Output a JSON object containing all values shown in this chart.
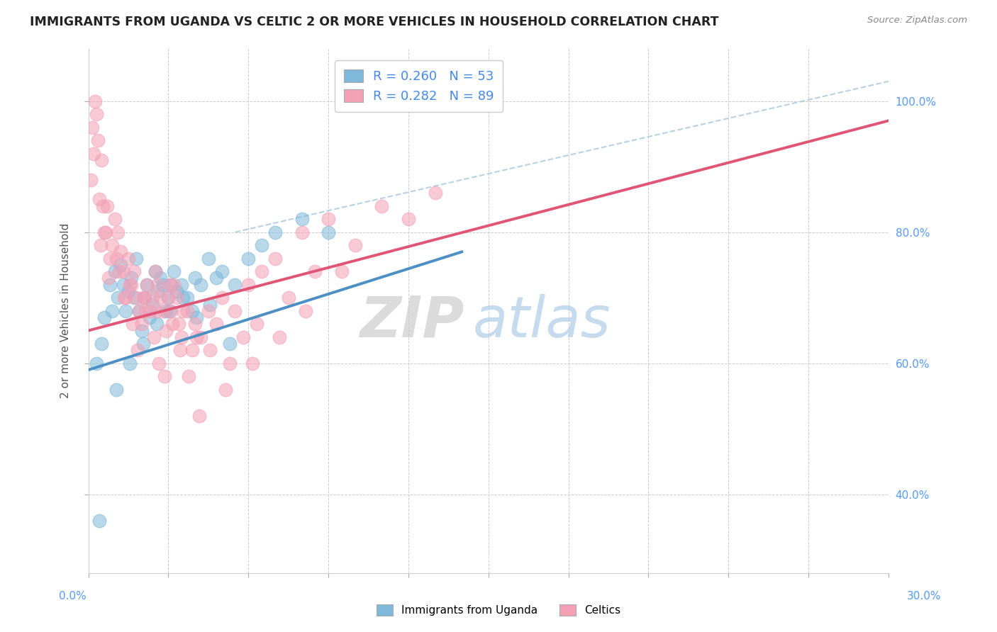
{
  "title": "IMMIGRANTS FROM UGANDA VS CELTIC 2 OR MORE VEHICLES IN HOUSEHOLD CORRELATION CHART",
  "source": "Source: ZipAtlas.com",
  "ylabel": "2 or more Vehicles in Household",
  "xlim": [
    0.0,
    30.0
  ],
  "ylim": [
    28.0,
    108.0
  ],
  "legend_blue_r": "R = 0.260",
  "legend_blue_n": "N = 53",
  "legend_pink_r": "R = 0.282",
  "legend_pink_n": "N = 89",
  "blue_color": "#7EB8DA",
  "pink_color": "#F4A0B5",
  "blue_line_color": "#4B8FC4",
  "pink_line_color": "#E05575",
  "ref_line_color": "#AECDE0",
  "watermark_zip": "ZIP",
  "watermark_atlas": "atlas",
  "blue_scatter_x": [
    0.3,
    0.5,
    0.6,
    0.8,
    0.9,
    1.0,
    1.1,
    1.2,
    1.3,
    1.4,
    1.5,
    1.6,
    1.7,
    1.8,
    1.9,
    2.0,
    2.1,
    2.2,
    2.3,
    2.4,
    2.5,
    2.6,
    2.7,
    2.8,
    2.9,
    3.0,
    3.1,
    3.2,
    3.3,
    3.5,
    3.7,
    3.9,
    4.0,
    4.2,
    4.5,
    4.8,
    5.0,
    5.5,
    6.0,
    6.5,
    7.0,
    8.0,
    9.0,
    0.4,
    1.05,
    1.55,
    2.05,
    2.55,
    3.05,
    3.55,
    4.05,
    4.55,
    5.3
  ],
  "blue_scatter_y": [
    60.0,
    63.0,
    67.0,
    72.0,
    68.0,
    74.0,
    70.0,
    75.0,
    72.0,
    68.0,
    71.0,
    73.0,
    70.0,
    76.0,
    68.0,
    65.0,
    70.0,
    72.0,
    67.0,
    69.0,
    74.0,
    71.0,
    73.0,
    72.0,
    68.0,
    70.0,
    72.0,
    74.0,
    71.0,
    72.0,
    70.0,
    68.0,
    73.0,
    72.0,
    76.0,
    73.0,
    74.0,
    72.0,
    76.0,
    78.0,
    80.0,
    82.0,
    80.0,
    36.0,
    56.0,
    60.0,
    63.0,
    66.0,
    68.0,
    70.0,
    67.0,
    69.0,
    63.0
  ],
  "pink_scatter_x": [
    0.1,
    0.15,
    0.2,
    0.25,
    0.3,
    0.35,
    0.4,
    0.5,
    0.6,
    0.7,
    0.8,
    0.9,
    1.0,
    1.1,
    1.2,
    1.3,
    1.4,
    1.5,
    1.6,
    1.7,
    1.8,
    1.9,
    2.0,
    2.1,
    2.2,
    2.3,
    2.4,
    2.5,
    2.6,
    2.7,
    2.8,
    2.9,
    3.0,
    3.1,
    3.2,
    3.3,
    3.4,
    3.5,
    3.7,
    3.9,
    4.0,
    4.2,
    4.5,
    4.8,
    5.0,
    5.5,
    6.0,
    6.5,
    7.0,
    8.0,
    9.0,
    11.0,
    0.45,
    0.75,
    1.05,
    1.55,
    2.05,
    2.55,
    3.05,
    3.55,
    4.05,
    4.55,
    5.3,
    5.8,
    6.3,
    7.5,
    8.5,
    10.0,
    12.0,
    13.0,
    0.55,
    0.65,
    1.15,
    1.35,
    1.65,
    1.85,
    2.15,
    2.45,
    2.65,
    2.85,
    3.15,
    3.45,
    3.75,
    4.15,
    5.15,
    6.15,
    7.15,
    8.15,
    9.5
  ],
  "pink_scatter_y": [
    88.0,
    96.0,
    92.0,
    100.0,
    98.0,
    94.0,
    85.0,
    91.0,
    80.0,
    84.0,
    76.0,
    78.0,
    82.0,
    80.0,
    77.0,
    74.0,
    70.0,
    76.0,
    72.0,
    74.0,
    70.0,
    68.0,
    66.0,
    70.0,
    72.0,
    68.0,
    70.0,
    74.0,
    72.0,
    70.0,
    68.0,
    65.0,
    70.0,
    68.0,
    72.0,
    70.0,
    66.0,
    64.0,
    68.0,
    62.0,
    66.0,
    64.0,
    68.0,
    66.0,
    70.0,
    68.0,
    72.0,
    74.0,
    76.0,
    80.0,
    82.0,
    84.0,
    78.0,
    73.0,
    76.0,
    72.0,
    70.0,
    68.0,
    72.0,
    68.0,
    64.0,
    62.0,
    60.0,
    64.0,
    66.0,
    70.0,
    74.0,
    78.0,
    82.0,
    86.0,
    84.0,
    80.0,
    74.0,
    70.0,
    66.0,
    62.0,
    68.0,
    64.0,
    60.0,
    58.0,
    66.0,
    62.0,
    58.0,
    52.0,
    56.0,
    60.0,
    64.0,
    68.0,
    74.0
  ],
  "blue_trend_x": [
    0.0,
    14.0
  ],
  "blue_trend_y": [
    59.0,
    77.0
  ],
  "pink_trend_x": [
    0.0,
    30.0
  ],
  "pink_trend_y": [
    65.0,
    97.0
  ],
  "ref_line_x": [
    5.5,
    30.0
  ],
  "ref_line_y": [
    80.0,
    103.0
  ],
  "yticks": [
    40,
    60,
    80,
    100
  ],
  "yticklabels": [
    "40.0%",
    "60.0%",
    "80.0%",
    "100.0%"
  ]
}
